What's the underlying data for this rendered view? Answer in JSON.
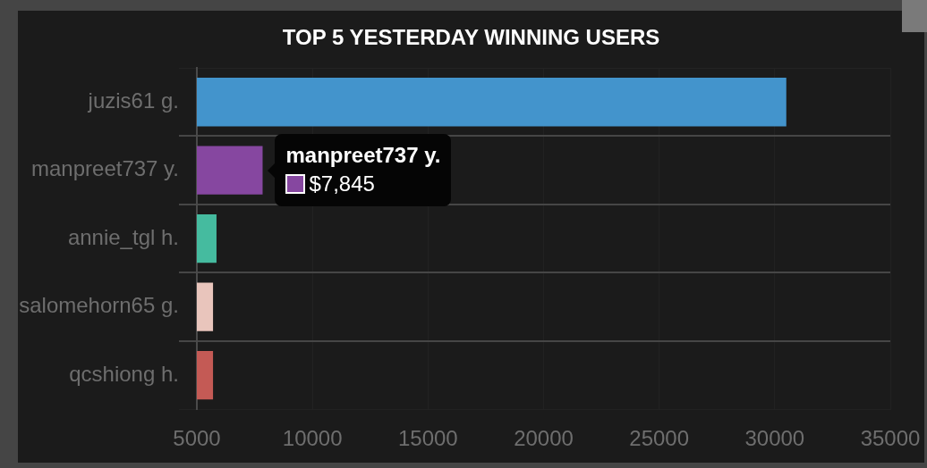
{
  "chart_data": {
    "type": "bar",
    "orientation": "horizontal",
    "title": "TOP 5 YESTERDAY WINNING USERS",
    "categories": [
      "juzis61 g.",
      "manpreet737 y.",
      "annie_tgl h.",
      "salomehorn65 g.",
      "qcshiong h."
    ],
    "values": [
      30500,
      7845,
      5850,
      5700,
      5700
    ],
    "colors": [
      "#4394cc",
      "#8647a0",
      "#45bb9f",
      "#e9c5bc",
      "#c45a55"
    ],
    "xlim": [
      5000,
      35000
    ],
    "xticks": [
      5000,
      10000,
      15000,
      20000,
      25000,
      30000,
      35000
    ],
    "grid": true,
    "legend": false,
    "annotations": [
      {
        "text": "manpreet737 y.",
        "x": 7845,
        "y": "manpreet737 y."
      },
      {
        "text": "$7,845",
        "x": 7845,
        "y": "manpreet737 y."
      }
    ]
  }
}
